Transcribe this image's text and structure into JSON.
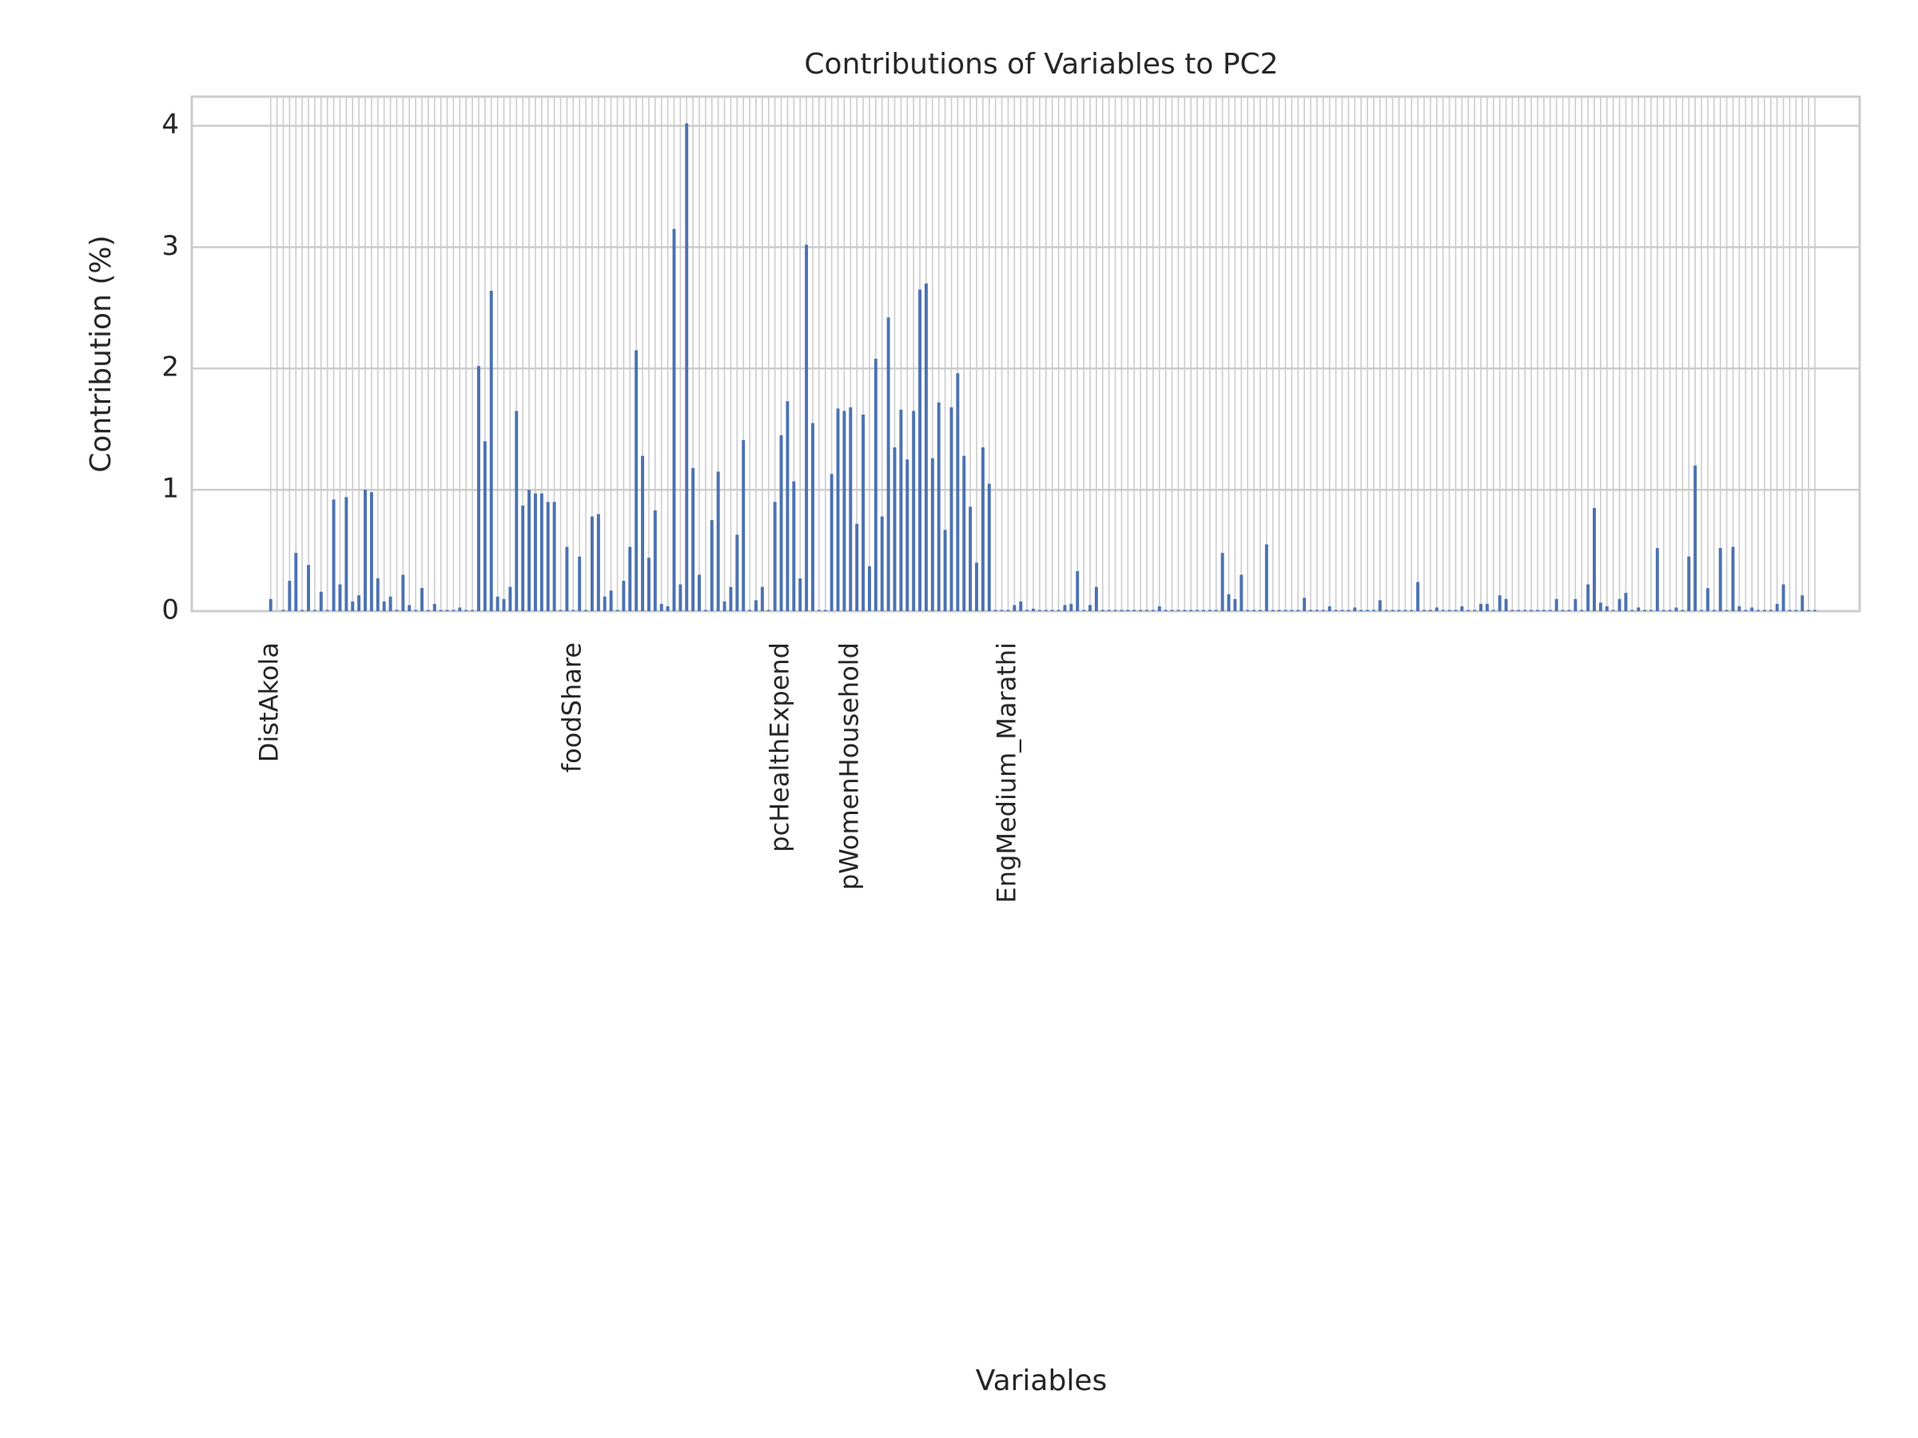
{
  "chart_data": {
    "type": "bar",
    "title": "Contributions of Variables to PC2",
    "xlabel": "Variables",
    "ylabel": "Contribution (%)",
    "categories": [
      "DistAkola",
      null,
      null,
      null,
      null,
      null,
      null,
      null,
      null,
      null,
      null,
      null,
      null,
      null,
      null,
      null,
      null,
      null,
      null,
      null,
      null,
      null,
      null,
      null,
      null,
      null,
      null,
      null,
      null,
      null,
      null,
      null,
      null,
      null,
      null,
      null,
      null,
      null,
      null,
      null,
      null,
      null,
      null,
      null,
      null,
      null,
      null,
      null,
      "foodShare",
      null,
      null,
      null,
      null,
      null,
      null,
      null,
      null,
      null,
      null,
      null,
      null,
      null,
      null,
      null,
      null,
      null,
      null,
      null,
      null,
      null,
      null,
      null,
      null,
      null,
      null,
      null,
      null,
      null,
      null,
      null,
      null,
      "pcHealthExpend",
      null,
      null,
      null,
      null,
      null,
      null,
      null,
      null,
      null,
      null,
      "pWomenHousehold",
      null,
      null,
      null,
      null,
      null,
      null,
      null,
      null,
      null,
      null,
      null,
      null,
      null,
      null,
      null,
      null,
      null,
      null,
      null,
      null,
      null,
      null,
      null,
      null,
      "EngMedium_Marathi",
      null,
      null,
      null,
      null,
      null,
      null,
      null,
      null,
      null,
      null,
      null,
      null,
      null,
      null,
      null,
      null,
      null,
      null,
      null,
      null,
      null,
      null,
      null,
      null,
      null,
      null,
      null,
      null,
      null,
      null,
      null,
      null,
      null,
      null,
      null,
      null,
      null,
      null,
      null,
      null,
      null,
      null,
      null,
      null,
      null,
      null,
      null,
      null,
      null,
      null,
      null,
      null,
      null,
      null,
      null,
      null,
      null,
      null,
      null,
      null,
      null,
      null,
      null,
      null,
      null,
      null,
      null,
      null,
      null,
      null,
      null,
      null,
      null,
      null,
      null,
      null,
      null,
      null,
      null,
      null,
      null,
      null,
      null,
      null,
      null,
      null,
      null,
      null,
      null,
      null,
      null,
      null,
      null,
      null,
      null,
      null,
      null,
      null,
      null,
      null,
      null,
      null,
      null,
      null,
      null,
      null,
      null,
      null,
      null,
      null,
      null,
      null,
      null,
      null,
      null,
      null,
      null,
      null,
      null,
      null,
      null,
      null,
      null,
      null,
      null,
      null,
      null,
      null
    ],
    "values": [
      0.1,
      0,
      0.01,
      0.25,
      0.48,
      0.01,
      0.38,
      0.01,
      0.16,
      0.01,
      0.92,
      0.22,
      0.94,
      0.08,
      0.13,
      1.0,
      0.98,
      0.27,
      0.08,
      0.12,
      0.01,
      0.3,
      0.05,
      0.01,
      0.19,
      0.01,
      0.06,
      0.01,
      0.01,
      0.01,
      0.03,
      0.01,
      0.01,
      2.02,
      1.4,
      2.64,
      0.12,
      0.1,
      0.2,
      1.65,
      0.87,
      1.0,
      0.97,
      0.97,
      0.9,
      0.9,
      0.01,
      0.53,
      0.01,
      0.45,
      0.01,
      0.78,
      0.8,
      0.12,
      0.17,
      0.01,
      0.25,
      0.53,
      2.15,
      1.28,
      0.44,
      0.83,
      0.06,
      0.04,
      3.15,
      0.22,
      4.02,
      1.18,
      0.3,
      0.01,
      0.75,
      1.15,
      0.08,
      0.2,
      0.63,
      1.41,
      0.01,
      0.09,
      0.2,
      0.01,
      0.9,
      1.45,
      1.73,
      1.07,
      0.27,
      3.02,
      1.55,
      0.01,
      0.01,
      1.13,
      1.67,
      1.65,
      1.68,
      0.72,
      1.62,
      0.37,
      2.08,
      0.78,
      2.42,
      1.35,
      1.66,
      1.25,
      1.65,
      2.65,
      2.7,
      1.26,
      1.72,
      0.67,
      1.68,
      1.96,
      1.28,
      0.86,
      0.4,
      1.35,
      1.05,
      0.01,
      0.01,
      0.01,
      0.05,
      0.08,
      0.01,
      0.02,
      0.01,
      0.01,
      0.01,
      0.01,
      0.05,
      0.06,
      0.33,
      0.01,
      0.05,
      0.2,
      0.01,
      0.01,
      0.01,
      0.01,
      0.01,
      0.01,
      0.01,
      0.01,
      0.01,
      0.04,
      0.01,
      0.01,
      0.01,
      0.01,
      0.01,
      0.01,
      0.01,
      0.01,
      0.01,
      0.48,
      0.14,
      0.1,
      0.3,
      0.01,
      0.01,
      0.01,
      0.55,
      0.01,
      0.01,
      0.01,
      0.01,
      0.01,
      0.11,
      0.01,
      0.01,
      0.01,
      0.04,
      0.01,
      0.01,
      0.01,
      0.03,
      0.01,
      0.01,
      0.01,
      0.09,
      0.01,
      0.01,
      0.01,
      0.01,
      0.01,
      0.24,
      0.01,
      0.01,
      0.03,
      0.01,
      0.01,
      0.01,
      0.04,
      0.01,
      0.01,
      0.06,
      0.06,
      0.01,
      0.13,
      0.1,
      0.01,
      0.01,
      0.01,
      0.01,
      0.01,
      0.01,
      0.01,
      0.1,
      0.01,
      0.01,
      0.1,
      0.01,
      0.22,
      0.85,
      0.07,
      0.04,
      0.01,
      0.1,
      0.15,
      0.01,
      0.03,
      0.01,
      0.01,
      0.52,
      0.01,
      0.01,
      0.03,
      0.01,
      0.45,
      1.2,
      0.01,
      0.19,
      0.01,
      0.52,
      0.01,
      0.53,
      0.04,
      0.01,
      0.03,
      0.01,
      0.01,
      0.01,
      0.06,
      0.22,
      0.01,
      0.01,
      0.13,
      0.01,
      0.01
    ],
    "color": "#4c72b0",
    "ylim": [
      0,
      4.24
    ],
    "yticks": [
      0,
      1,
      2,
      3,
      4
    ],
    "grid": true
  }
}
